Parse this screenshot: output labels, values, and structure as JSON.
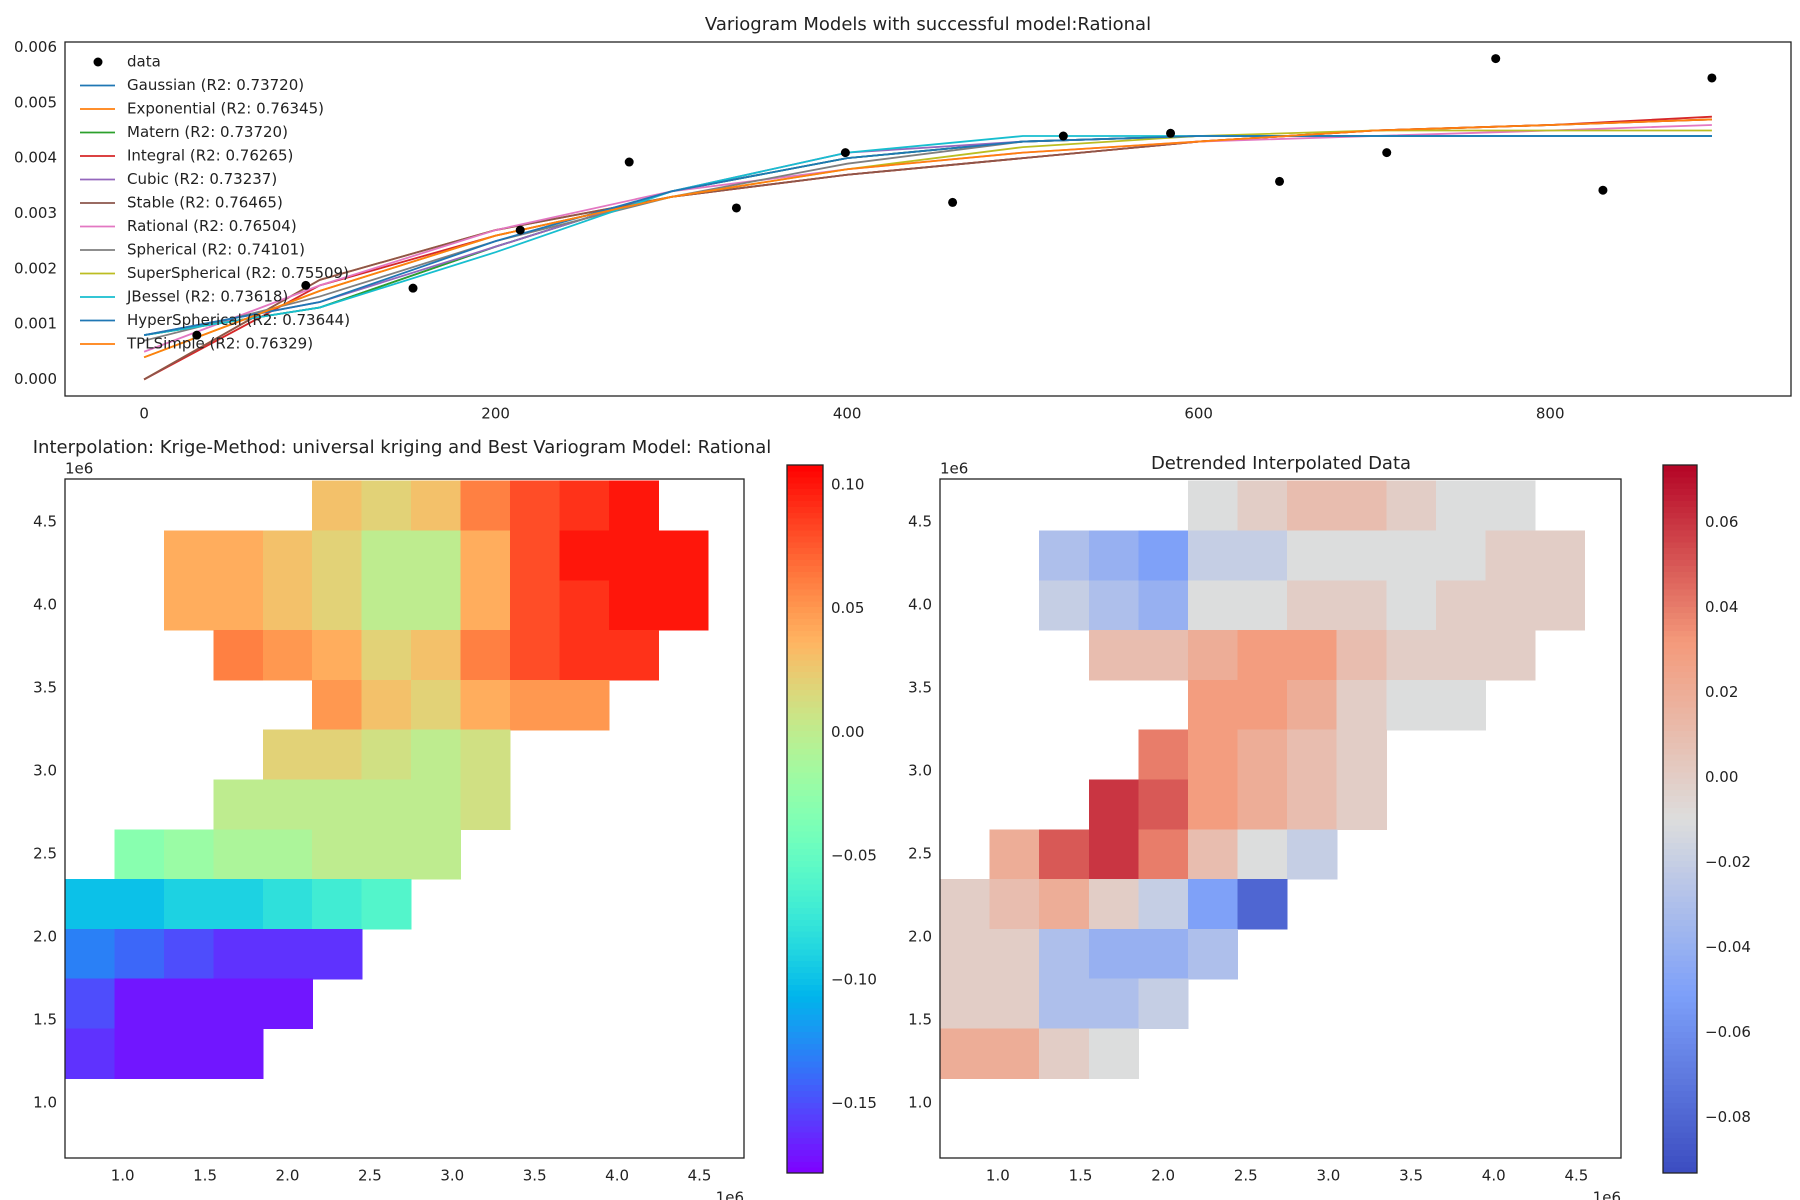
{
  "chart_data": [
    {
      "type": "line",
      "title": "Variogram Models with successful model:Rational",
      "xlim": [
        -45,
        937
      ],
      "ylim": [
        -0.0003,
        0.0061
      ],
      "xticks": [
        0,
        200,
        400,
        600,
        800
      ],
      "yticks": [
        {
          "value": 0,
          "label": "0.000"
        },
        {
          "value": 0.001,
          "label": "0.001"
        },
        {
          "value": 0.002,
          "label": "0.002"
        },
        {
          "value": 0.003,
          "label": "0.003"
        },
        {
          "value": 0.004,
          "label": "0.004"
        },
        {
          "value": 0.005,
          "label": "0.005"
        },
        {
          "value": 0.006,
          "label": "0.006"
        }
      ],
      "legend": "upper left",
      "x": [
        0,
        100,
        200,
        300,
        400,
        500,
        600,
        700,
        800,
        892
      ],
      "series": [
        {
          "name": "data",
          "type": "scatter",
          "color": "#000000",
          "x": [
            30,
            92,
            153,
            214,
            276,
            337,
            399,
            460,
            523,
            584,
            646,
            707,
            769,
            830,
            892
          ],
          "values": [
            0.0008,
            0.0017,
            0.00165,
            0.0027,
            0.00393,
            0.0031,
            0.0041,
            0.0032,
            0.0044,
            0.00445,
            0.00358,
            0.0041,
            0.0058,
            0.00342,
            0.00545
          ]
        },
        {
          "name": "Gaussian (R2: 0.73720)",
          "color": "#1f77b4",
          "values": [
            0.0008,
            0.0013,
            0.0024,
            0.0034,
            0.004,
            0.0043,
            0.0044,
            0.0044,
            0.0044,
            0.0044
          ]
        },
        {
          "name": "Exponential (R2: 0.76345)",
          "color": "#ff7f0e",
          "values": [
            0.0,
            0.0018,
            0.0027,
            0.0033,
            0.0037,
            0.004,
            0.0043,
            0.0045,
            0.0046,
            0.0047
          ]
        },
        {
          "name": "Matern (R2: 0.73720)",
          "color": "#2ca02c",
          "values": [
            0.0008,
            0.0013,
            0.0024,
            0.0034,
            0.004,
            0.0043,
            0.0044,
            0.0044,
            0.0044,
            0.0044
          ]
        },
        {
          "name": "Integral (R2: 0.76265)",
          "color": "#d62728",
          "values": [
            0.0,
            0.0017,
            0.0026,
            0.0033,
            0.0037,
            0.004,
            0.0043,
            0.0045,
            0.0046,
            0.00475
          ]
        },
        {
          "name": "Cubic (R2: 0.73237)",
          "color": "#9467bd",
          "values": [
            0.0008,
            0.0014,
            0.0024,
            0.0034,
            0.0041,
            0.0043,
            0.0044,
            0.0044,
            0.0044,
            0.0044
          ]
        },
        {
          "name": "Stable (R2: 0.76465)",
          "color": "#8c564b",
          "values": [
            0.0,
            0.0018,
            0.0027,
            0.0033,
            0.0037,
            0.004,
            0.0043,
            0.0045,
            0.0046,
            0.0047
          ]
        },
        {
          "name": "Rational (R2: 0.76504)",
          "color": "#e377c2",
          "values": [
            0.0005,
            0.0017,
            0.0027,
            0.0034,
            0.0038,
            0.0041,
            0.0043,
            0.0044,
            0.0045,
            0.0046
          ]
        },
        {
          "name": "Spherical (R2: 0.74101)",
          "color": "#7f7f7f",
          "values": [
            0.0007,
            0.0015,
            0.0025,
            0.0033,
            0.0039,
            0.0043,
            0.0044,
            0.0044,
            0.0044,
            0.0044
          ]
        },
        {
          "name": "SuperSpherical (R2: 0.75509)",
          "color": "#bcbd22",
          "values": [
            0.0004,
            0.0016,
            0.0026,
            0.0033,
            0.0038,
            0.0042,
            0.0044,
            0.0045,
            0.0045,
            0.0045
          ]
        },
        {
          "name": "JBessel (R2: 0.73618)",
          "color": "#17becf",
          "values": [
            0.0008,
            0.0013,
            0.0023,
            0.0034,
            0.0041,
            0.0044,
            0.0044,
            0.0044,
            0.0044,
            0.0044
          ]
        },
        {
          "name": "HyperSpherical (R2: 0.73644)",
          "color": "#1f77b4",
          "values": [
            0.0008,
            0.0014,
            0.0025,
            0.0034,
            0.004,
            0.0043,
            0.0044,
            0.0044,
            0.0044,
            0.0044
          ]
        },
        {
          "name": "TPLSimple (R2: 0.76329)",
          "color": "#ff7f0e",
          "values": [
            0.0004,
            0.0016,
            0.0026,
            0.0033,
            0.0038,
            0.0041,
            0.0043,
            0.0045,
            0.0046,
            0.0047
          ]
        }
      ]
    },
    {
      "type": "heatmap",
      "title": "Interpolation: Krige-Method: universal kriging and Best Variogram Model: Rational",
      "colormap": "rainbow",
      "x_offset_label": "1e6",
      "y_offset_label": "1e6",
      "xlim": [
        0.65,
        4.77
      ],
      "ylim": [
        0.67,
        4.76
      ],
      "zlim": [
        -0.178,
        0.108
      ],
      "xticks": [
        {
          "value": 1,
          "label": "1.0"
        },
        {
          "value": 1.5,
          "label": "1.5"
        },
        {
          "value": 2,
          "label": "2.0"
        },
        {
          "value": 2.5,
          "label": "2.5"
        },
        {
          "value": 3,
          "label": "3.0"
        },
        {
          "value": 3.5,
          "label": "3.5"
        },
        {
          "value": 4,
          "label": "4.0"
        },
        {
          "value": 4.5,
          "label": "4.5"
        }
      ],
      "yticks": [
        {
          "value": 1,
          "label": "1.0"
        },
        {
          "value": 1.5,
          "label": "1.5"
        },
        {
          "value": 2,
          "label": "2.0"
        },
        {
          "value": 2.5,
          "label": "2.5"
        },
        {
          "value": 3,
          "label": "3.0"
        },
        {
          "value": 3.5,
          "label": "3.5"
        },
        {
          "value": 4,
          "label": "4.0"
        },
        {
          "value": 4.5,
          "label": "4.5"
        }
      ],
      "colorbar_ticks": [
        {
          "value": -0.15,
          "label": "−0.15"
        },
        {
          "value": -0.1,
          "label": "−0.10"
        },
        {
          "value": -0.05,
          "label": "−0.05"
        },
        {
          "value": 0,
          "label": "0.00"
        },
        {
          "value": 0.05,
          "label": "0.05"
        },
        {
          "value": 0.1,
          "label": "0.10"
        }
      ],
      "x": [
        0.8,
        1.1,
        1.4,
        1.7,
        2.0,
        2.3,
        2.6,
        2.9,
        3.2,
        3.5,
        3.8,
        4.1,
        4.4
      ],
      "y": [
        4.6,
        4.3,
        4.0,
        3.7,
        3.4,
        3.1,
        2.8,
        2.5,
        2.2,
        1.9,
        1.6,
        1.3
      ],
      "z": [
        [
          null,
          null,
          null,
          null,
          null,
          0.03,
          0.02,
          0.03,
          0.06,
          0.08,
          0.09,
          0.1,
          null
        ],
        [
          null,
          null,
          0.04,
          0.04,
          0.03,
          0.02,
          0.0,
          0.0,
          0.04,
          0.08,
          0.1,
          0.1,
          0.1
        ],
        [
          null,
          null,
          0.04,
          0.04,
          0.03,
          0.02,
          0.0,
          0.0,
          0.04,
          0.08,
          0.09,
          0.1,
          0.1
        ],
        [
          null,
          null,
          null,
          0.06,
          0.05,
          0.04,
          0.02,
          0.03,
          0.06,
          0.08,
          0.09,
          0.09,
          null
        ],
        [
          null,
          null,
          null,
          null,
          null,
          0.05,
          0.03,
          0.02,
          0.04,
          0.05,
          0.05,
          null,
          null
        ],
        [
          null,
          null,
          null,
          null,
          0.02,
          0.02,
          0.01,
          0.0,
          0.01,
          null,
          null,
          null,
          null
        ],
        [
          null,
          null,
          null,
          0.0,
          0.0,
          0.0,
          0.0,
          0.0,
          0.01,
          null,
          null,
          null,
          null
        ],
        [
          null,
          -0.03,
          -0.02,
          -0.01,
          -0.01,
          0.0,
          0.0,
          0.0,
          null,
          null,
          null,
          null,
          null
        ],
        [
          -0.1,
          -0.1,
          -0.09,
          -0.09,
          -0.08,
          -0.07,
          -0.06,
          null,
          null,
          null,
          null,
          null,
          null
        ],
        [
          -0.13,
          -0.14,
          -0.15,
          -0.16,
          -0.16,
          -0.16,
          null,
          null,
          null,
          null,
          null,
          null,
          null
        ],
        [
          -0.15,
          -0.17,
          -0.17,
          -0.17,
          -0.17,
          null,
          null,
          null,
          null,
          null,
          null,
          null,
          null
        ],
        [
          -0.16,
          -0.17,
          -0.17,
          -0.17,
          null,
          null,
          null,
          null,
          null,
          null,
          null,
          null,
          null
        ]
      ]
    },
    {
      "type": "heatmap",
      "title": "Detrended Interpolated Data",
      "colormap": "coolwarm",
      "x_offset_label": "1e6",
      "y_offset_label": "1e6",
      "xlim": [
        0.65,
        4.77
      ],
      "ylim": [
        0.67,
        4.76
      ],
      "zlim": [
        -0.093,
        0.0735
      ],
      "xticks": [
        {
          "value": 1,
          "label": "1.0"
        },
        {
          "value": 1.5,
          "label": "1.5"
        },
        {
          "value": 2,
          "label": "2.0"
        },
        {
          "value": 2.5,
          "label": "2.5"
        },
        {
          "value": 3,
          "label": "3.0"
        },
        {
          "value": 3.5,
          "label": "3.5"
        },
        {
          "value": 4,
          "label": "4.0"
        },
        {
          "value": 4.5,
          "label": "4.5"
        }
      ],
      "yticks": [
        {
          "value": 1,
          "label": "1.0"
        },
        {
          "value": 1.5,
          "label": "1.5"
        },
        {
          "value": 2,
          "label": "2.0"
        },
        {
          "value": 2.5,
          "label": "2.5"
        },
        {
          "value": 3,
          "label": "3.0"
        },
        {
          "value": 3.5,
          "label": "3.5"
        },
        {
          "value": 4,
          "label": "4.0"
        },
        {
          "value": 4.5,
          "label": "4.5"
        }
      ],
      "colorbar_ticks": [
        {
          "value": -0.08,
          "label": "−0.08"
        },
        {
          "value": -0.06,
          "label": "−0.06"
        },
        {
          "value": -0.04,
          "label": "−0.04"
        },
        {
          "value": -0.02,
          "label": "−0.02"
        },
        {
          "value": 0,
          "label": "0.00"
        },
        {
          "value": 0.02,
          "label": "0.02"
        },
        {
          "value": 0.04,
          "label": "0.04"
        },
        {
          "value": 0.06,
          "label": "0.06"
        }
      ],
      "x": [
        0.8,
        1.1,
        1.4,
        1.7,
        2.0,
        2.3,
        2.6,
        2.9,
        3.2,
        3.5,
        3.8,
        4.1,
        4.4
      ],
      "y": [
        4.6,
        4.3,
        4.0,
        3.7,
        3.4,
        3.1,
        2.8,
        2.5,
        2.2,
        1.9,
        1.6,
        1.3
      ],
      "z": [
        [
          null,
          null,
          null,
          null,
          null,
          -0.01,
          0.0,
          0.01,
          0.01,
          0.0,
          -0.01,
          -0.01,
          null
        ],
        [
          null,
          null,
          -0.03,
          -0.04,
          -0.05,
          -0.02,
          -0.02,
          -0.01,
          -0.01,
          -0.01,
          -0.01,
          0.0,
          0.0
        ],
        [
          null,
          null,
          -0.02,
          -0.03,
          -0.04,
          -0.01,
          -0.01,
          0.0,
          0.0,
          -0.01,
          0.0,
          0.0,
          0.0
        ],
        [
          null,
          null,
          null,
          0.01,
          0.01,
          0.02,
          0.03,
          0.03,
          0.01,
          0.0,
          0.0,
          0.0,
          null
        ],
        [
          null,
          null,
          null,
          null,
          null,
          0.03,
          0.03,
          0.02,
          0.0,
          -0.01,
          -0.01,
          null,
          null
        ],
        [
          null,
          null,
          null,
          null,
          0.04,
          0.03,
          0.02,
          0.01,
          0.0,
          null,
          null,
          null,
          null
        ],
        [
          null,
          null,
          null,
          0.06,
          0.05,
          0.03,
          0.02,
          0.01,
          0.0,
          null,
          null,
          null,
          null
        ],
        [
          null,
          0.02,
          0.05,
          0.06,
          0.04,
          0.01,
          -0.01,
          -0.02,
          null,
          null,
          null,
          null,
          null
        ],
        [
          0.0,
          0.01,
          0.02,
          0.0,
          -0.02,
          -0.05,
          -0.08,
          null,
          null,
          null,
          null,
          null,
          null
        ],
        [
          0.0,
          0.0,
          -0.03,
          -0.04,
          -0.04,
          -0.03,
          null,
          null,
          null,
          null,
          null,
          null,
          null
        ],
        [
          0.0,
          0.0,
          -0.03,
          -0.03,
          -0.02,
          null,
          null,
          null,
          null,
          null,
          null,
          null,
          null
        ],
        [
          0.02,
          0.02,
          0.0,
          -0.01,
          null,
          null,
          null,
          null,
          null,
          null,
          null,
          null,
          null
        ]
      ]
    }
  ]
}
